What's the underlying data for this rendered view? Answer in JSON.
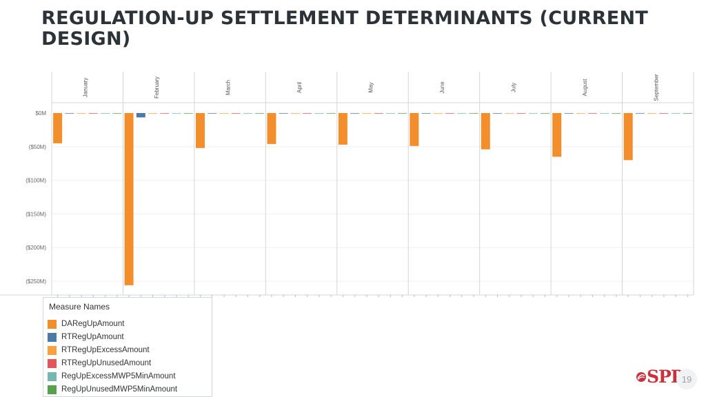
{
  "slide": {
    "title": "REGULATION-UP SETTLEMENT DETERMINANTS (CURRENT DESIGN)",
    "page_number": "19",
    "logo_text": "SPP"
  },
  "legend": {
    "title": "Measure Names",
    "items": [
      {
        "label": "DARegUpAmount",
        "color": "#f28e2b"
      },
      {
        "label": "RTRegUpAmount",
        "color": "#4e79a7"
      },
      {
        "label": "RTRegUpExcessAmount",
        "color": "#f7a13f"
      },
      {
        "label": "RTRegUpUnusedAmount",
        "color": "#e15759"
      },
      {
        "label": "RegUpExcessMWP5MinAmount",
        "color": "#76b7b2"
      },
      {
        "label": "RegUpUnusedMWP5MinAmount",
        "color": "#59a14f"
      }
    ]
  },
  "chart_data": {
    "type": "bar",
    "categories": [
      "January",
      "February",
      "March",
      "April",
      "May",
      "June",
      "July",
      "August",
      "September"
    ],
    "ylim": [
      -270,
      5
    ],
    "yticks": [
      0,
      -50,
      -100,
      -150,
      -200,
      -250
    ],
    "ytick_labels": [
      "$0M",
      "($50M)",
      "($100M)",
      "($150M)",
      "($200M)",
      "($250M)"
    ],
    "series": [
      {
        "name": "DARegUpAmount",
        "color": "#f28e2b",
        "values": [
          -45,
          -256,
          -52,
          -46,
          -47,
          -49,
          -54,
          -65,
          -70
        ]
      },
      {
        "name": "RTRegUpAmount",
        "color": "#4e79a7",
        "values": [
          -0.5,
          -6.5,
          -0.5,
          -0.5,
          -0.5,
          -0.5,
          -0.5,
          -0.5,
          -0.5
        ]
      },
      {
        "name": "RTRegUpExcessAmount",
        "color": "#f7a13f",
        "values": [
          -0.3,
          -0.4,
          -0.3,
          -0.3,
          -0.3,
          -0.3,
          -0.3,
          -0.3,
          -0.3
        ]
      },
      {
        "name": "RTRegUpUnusedAmount",
        "color": "#e15759",
        "values": [
          -0.3,
          -0.3,
          -0.3,
          -0.3,
          -0.3,
          -0.3,
          -0.3,
          -0.3,
          -0.3
        ]
      },
      {
        "name": "RegUpExcessMWP5MinAmount",
        "color": "#76b7b2",
        "values": [
          -0.3,
          -0.3,
          -0.3,
          -0.3,
          -0.3,
          -0.3,
          -0.3,
          -0.3,
          -0.3
        ]
      },
      {
        "name": "RegUpUnusedMWP5MinAmount",
        "color": "#59a14f",
        "values": [
          -0.3,
          -0.3,
          -0.3,
          -0.3,
          -0.3,
          -0.3,
          -0.3,
          -0.3,
          -0.3
        ]
      }
    ],
    "grid": true,
    "legend_position": "bottom-left"
  }
}
